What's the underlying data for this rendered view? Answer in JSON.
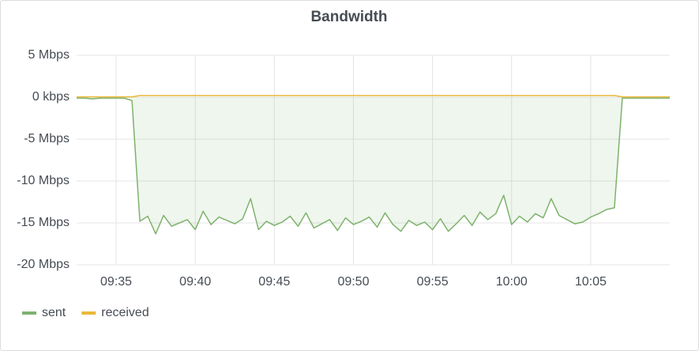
{
  "chart_data": {
    "type": "line",
    "title": "Bandwidth",
    "x": [
      572.5,
      573,
      573.5,
      574,
      574.5,
      575,
      575.5,
      576,
      576.5,
      577,
      577.5,
      578,
      578.5,
      579,
      579.5,
      580,
      580.5,
      581,
      581.5,
      582,
      582.5,
      583,
      583.5,
      584,
      584.5,
      585,
      585.5,
      586,
      586.5,
      587,
      587.5,
      588,
      588.5,
      589,
      589.5,
      590,
      590.5,
      591,
      591.5,
      592,
      592.5,
      593,
      593.5,
      594,
      594.5,
      595,
      595.5,
      596,
      596.5,
      597,
      597.5,
      598,
      598.5,
      599,
      599.5,
      600,
      600.5,
      601,
      601.5,
      602,
      602.5,
      603,
      603.5,
      604,
      604.5,
      605,
      605.5,
      606,
      606.5,
      607,
      607.5,
      608,
      608.5,
      609,
      609.5,
      610
    ],
    "series": [
      {
        "name": "sent",
        "color": "#7eb26d",
        "fill": true,
        "values": [
          -0.1,
          -0.1,
          -0.2,
          -0.1,
          -0.1,
          -0.1,
          -0.1,
          -0.4,
          -14.8,
          -14.2,
          -16.3,
          -14.1,
          -15.4,
          -15,
          -14.6,
          -15.8,
          -13.6,
          -15.2,
          -14.3,
          -14.7,
          -15.1,
          -14.5,
          -12.1,
          -15.8,
          -14.8,
          -15.3,
          -14.9,
          -14.2,
          -15.4,
          -13.8,
          -15.6,
          -15.1,
          -14.6,
          -15.9,
          -14.4,
          -15.2,
          -14.8,
          -14.3,
          -15.5,
          -13.8,
          -15.2,
          -16,
          -14.7,
          -15.3,
          -14.9,
          -15.8,
          -14.5,
          -16,
          -15.1,
          -14.1,
          -15.3,
          -13.7,
          -14.6,
          -13.9,
          -11.7,
          -15.2,
          -14.2,
          -14.9,
          -13.9,
          -14.4,
          -12.1,
          -14.1,
          -14.6,
          -15.1,
          -14.9,
          -14.3,
          -13.9,
          -13.4,
          -13.2,
          -0.1,
          -0.1,
          -0.1,
          -0.1,
          -0.1,
          -0.1,
          -0.1
        ]
      },
      {
        "name": "received",
        "color": "#eab839",
        "fill": false,
        "values": [
          0.05,
          0.05,
          0.05,
          0.05,
          0.05,
          0.05,
          0.05,
          0.05,
          0.2,
          0.2,
          0.2,
          0.2,
          0.2,
          0.2,
          0.2,
          0.2,
          0.2,
          0.2,
          0.2,
          0.2,
          0.2,
          0.2,
          0.2,
          0.2,
          0.2,
          0.2,
          0.2,
          0.2,
          0.2,
          0.2,
          0.2,
          0.2,
          0.2,
          0.2,
          0.2,
          0.2,
          0.2,
          0.2,
          0.2,
          0.2,
          0.2,
          0.2,
          0.2,
          0.2,
          0.2,
          0.2,
          0.2,
          0.2,
          0.2,
          0.2,
          0.2,
          0.2,
          0.2,
          0.2,
          0.2,
          0.2,
          0.2,
          0.2,
          0.2,
          0.2,
          0.2,
          0.2,
          0.2,
          0.2,
          0.2,
          0.2,
          0.2,
          0.2,
          0.2,
          0.05,
          0.05,
          0.05,
          0.05,
          0.05,
          0.05,
          0.05
        ]
      }
    ],
    "xlim": [
      572.5,
      610
    ],
    "xticks": [
      {
        "value": 575,
        "label": "09:35"
      },
      {
        "value": 580,
        "label": "09:40"
      },
      {
        "value": 585,
        "label": "09:45"
      },
      {
        "value": 590,
        "label": "09:50"
      },
      {
        "value": 595,
        "label": "09:55"
      },
      {
        "value": 600,
        "label": "10:00"
      },
      {
        "value": 605,
        "label": "10:05"
      }
    ],
    "ylim": [
      -20,
      5
    ],
    "yticks": [
      {
        "value": 5,
        "label": "5 Mbps"
      },
      {
        "value": 0,
        "label": "0 kbps"
      },
      {
        "value": -5,
        "label": "-5 Mbps"
      },
      {
        "value": -10,
        "label": "-10 Mbps"
      },
      {
        "value": -15,
        "label": "-15 Mbps"
      },
      {
        "value": -20,
        "label": "-20 Mbps"
      }
    ],
    "grid": true,
    "legend": "bottom-left"
  }
}
